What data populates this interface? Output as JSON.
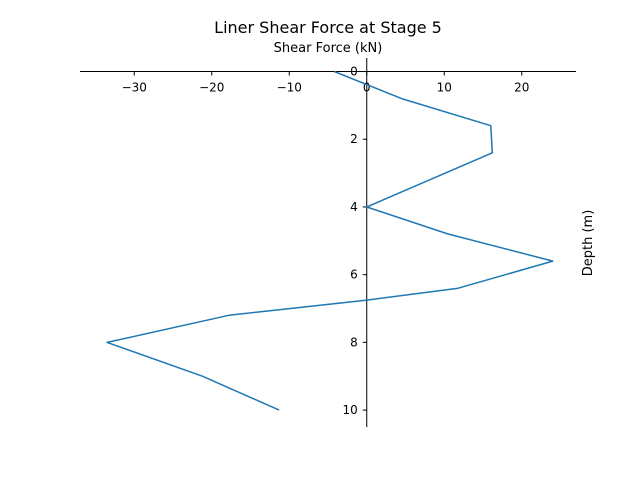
{
  "chart_data": {
    "type": "line",
    "title": "Liner Shear Force at Stage 5",
    "xlabel": "Shear Force (kN)",
    "ylabel": "Depth (m)",
    "xlim": [
      -37,
      27
    ],
    "ylim": [
      10.5,
      -0.4
    ],
    "x_ticks": [
      -30,
      -20,
      -10,
      0,
      10,
      20
    ],
    "y_ticks": [
      0,
      2,
      4,
      6,
      8,
      10
    ],
    "line_color": "#1f77b4",
    "series": [
      {
        "x": [
          -4.2,
          4.5,
          16.0,
          16.2,
          0.0,
          10.5,
          24.0,
          11.8,
          0.0,
          -17.8,
          -33.5,
          -21.2,
          -11.3
        ],
        "y": [
          0.0,
          0.8,
          1.6,
          2.4,
          4.0,
          4.8,
          5.6,
          6.4,
          6.75,
          7.2,
          8.0,
          9.0,
          10.0
        ]
      }
    ]
  }
}
